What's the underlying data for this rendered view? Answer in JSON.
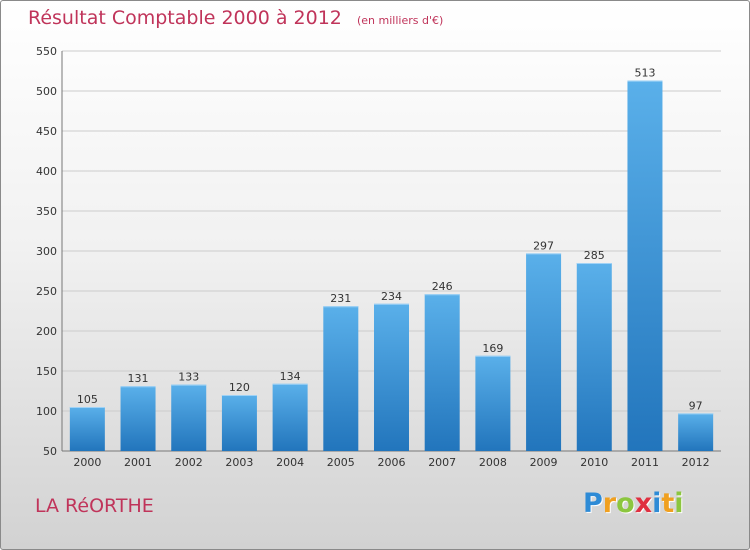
{
  "title": "Résultat Comptable 2000 à 2012",
  "subtitle": "(en milliers d'€)",
  "commune": "LA RéORTHE",
  "logo": {
    "letters": [
      "P",
      "r",
      "o",
      "x",
      "i",
      "t",
      "i"
    ],
    "colors": [
      "#2e8bd6",
      "#f0a020",
      "#8cc63f",
      "#e03040",
      "#2e8bd6",
      "#f0a020",
      "#8cc63f"
    ]
  },
  "colors": {
    "title": "#c0345a",
    "bar_top": "#5ab0ea",
    "bar_bottom": "#2275bc",
    "grid": "#cccccc"
  },
  "chart_data": {
    "type": "bar",
    "categories": [
      "2000",
      "2001",
      "2002",
      "2003",
      "2004",
      "2005",
      "2006",
      "2007",
      "2008",
      "2009",
      "2010",
      "2011",
      "2012"
    ],
    "values": [
      105,
      131,
      133,
      120,
      134,
      231,
      234,
      246,
      169,
      297,
      285,
      513,
      97
    ],
    "title": "Résultat Comptable 2000 à 2012",
    "ylim": [
      50,
      550
    ],
    "yticks": [
      50,
      100,
      150,
      200,
      250,
      300,
      350,
      400,
      450,
      500,
      550
    ],
    "grid": true,
    "legend": "none"
  }
}
